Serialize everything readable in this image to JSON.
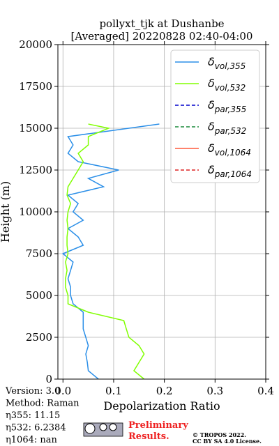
{
  "chart_data": {
    "type": "line",
    "title": "pollyxt_tjk at Dushanbe",
    "subtitle": "[Averaged] 20220828 02:40-04:00",
    "x_label": "Depolarization Ratio",
    "y_label": "Height (m)",
    "heights": [
      0,
      500,
      1000,
      1500,
      2000,
      2500,
      3000,
      3500,
      4000,
      4500,
      5000,
      5500,
      6000,
      6500,
      7000,
      7500,
      8000,
      8500,
      9000,
      9500,
      10000,
      10500,
      11000,
      11500,
      12000,
      12500,
      13000,
      13500,
      14000,
      14500,
      15000,
      15250
    ],
    "series": [
      {
        "name": "δvol,355",
        "color": "#2b8fe8",
        "dash": false,
        "values": [
          0.07,
          0.05,
          0.048,
          0.045,
          0.05,
          0.045,
          0.04,
          0.04,
          0.04,
          0.02,
          0.015,
          0.015,
          0.01,
          0.015,
          0.02,
          0,
          0.04,
          0.03,
          0.01,
          0.04,
          0.02,
          0.03,
          0.01,
          0.08,
          0.05,
          0.11,
          0.03,
          0.01,
          0.02,
          0.01,
          0.13,
          0.19
        ]
      },
      {
        "name": "δvol,532",
        "color": "#80ff00",
        "dash": false,
        "values": [
          0.16,
          0.14,
          0.15,
          0.16,
          0.15,
          0.13,
          0.125,
          0.12,
          0.05,
          0.01,
          0.01,
          0.005,
          0.005,
          0.008,
          0.005,
          0.01,
          0.008,
          0.008,
          0.01,
          0.008,
          0.01,
          0.015,
          0.008,
          0.01,
          0.02,
          0.03,
          0.04,
          0.03,
          0.05,
          0.05,
          0.09,
          0.05
        ]
      },
      {
        "name": "δpar,355",
        "color": "#0000cc",
        "dash": true,
        "values": [
          null,
          null,
          null,
          null,
          null,
          null,
          null,
          null,
          null,
          null,
          null,
          null,
          null,
          null,
          null,
          null,
          null,
          null,
          null,
          null,
          null,
          null,
          null,
          null,
          null,
          null,
          null,
          null,
          null,
          null,
          null,
          null
        ]
      },
      {
        "name": "δpar,532",
        "color": "#1a8a3a",
        "dash": true,
        "values": [
          null,
          null,
          null,
          null,
          null,
          null,
          null,
          null,
          null,
          null,
          null,
          null,
          null,
          null,
          null,
          null,
          null,
          null,
          null,
          null,
          null,
          null,
          null,
          null,
          null,
          null,
          null,
          null,
          null,
          null,
          null,
          null
        ]
      },
      {
        "name": "δvol,1064",
        "color": "#ff5a3c",
        "dash": false,
        "values": [
          null,
          null,
          null,
          null,
          null,
          null,
          null,
          null,
          null,
          null,
          null,
          null,
          null,
          null,
          null,
          null,
          null,
          null,
          null,
          null,
          null,
          null,
          null,
          null,
          null,
          null,
          null,
          null,
          null,
          null,
          null,
          null
        ]
      },
      {
        "name": "δpar,1064",
        "color": "#dd2222",
        "dash": true,
        "values": [
          null,
          null,
          null,
          null,
          null,
          null,
          null,
          null,
          null,
          null,
          null,
          null,
          null,
          null,
          null,
          null,
          null,
          null,
          null,
          null,
          null,
          null,
          null,
          null,
          null,
          null,
          null,
          null,
          null,
          null,
          null,
          null
        ]
      }
    ],
    "xlim": [
      -0.01,
      0.4
    ],
    "xticks": [
      {
        "value": 0,
        "label": "0.0"
      },
      0.1,
      0.2,
      0.3,
      0.4
    ],
    "ylim": [
      0,
      20000
    ],
    "yticks": [
      0,
      2500,
      5000,
      7500,
      10000,
      12500,
      15000,
      17500,
      20000
    ],
    "grid": true,
    "legend": "upper right"
  },
  "info": [
    "Version: 3.0",
    "Method: Raman",
    "η355:  11.15",
    "η532: 6.2384",
    "η1064:    nan"
  ],
  "notice": [
    "Preliminary",
    "Results."
  ],
  "copyright": [
    "© TROPOS 2022.",
    "CC BY SA 4.0 License."
  ]
}
